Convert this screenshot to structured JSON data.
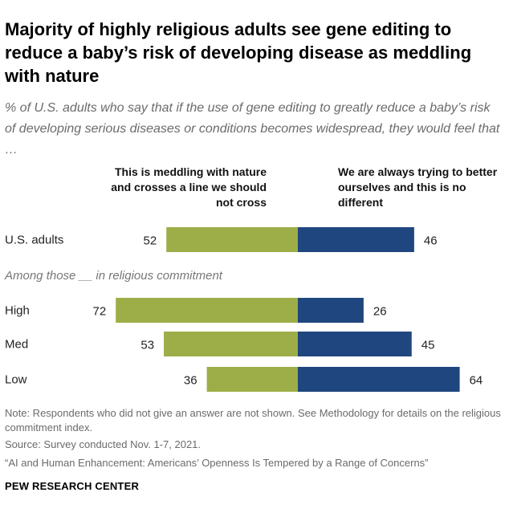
{
  "title": "Majority of highly religious adults see gene editing to reduce a baby’s risk of developing disease as meddling with nature",
  "subtitle": "% of U.S. adults who say that if the use of gene editing to greatly reduce a baby’s risk of developing serious diseases or conditions becomes widespread, they would feel that …",
  "group_label": "Among those __ in religious commitment",
  "notes": "Note: Respondents who did not give an answer are not shown. See Methodology for details on the religious commitment index.",
  "source": "Source: Survey conducted Nov. 1-7, 2021.",
  "report": "“AI and Human Enhancement: Americans’ Openness Is Tempered by a Range of Concerns”",
  "brand": "PEW RESEARCH CENTER",
  "colors": {
    "meddling": "#9dae48",
    "no_different": "#1f467f"
  },
  "chart_data": {
    "type": "bar",
    "orientation": "horizontal-diverging",
    "categories": [
      "U.S. adults",
      "High",
      "Med",
      "Low"
    ],
    "series": [
      {
        "name": "This is meddling with nature and crosses a line we should not cross",
        "values": [
          52,
          72,
          53,
          36
        ]
      },
      {
        "name": "We are always trying to better ourselves and this is no different",
        "values": [
          46,
          26,
          45,
          64
        ]
      }
    ]
  }
}
